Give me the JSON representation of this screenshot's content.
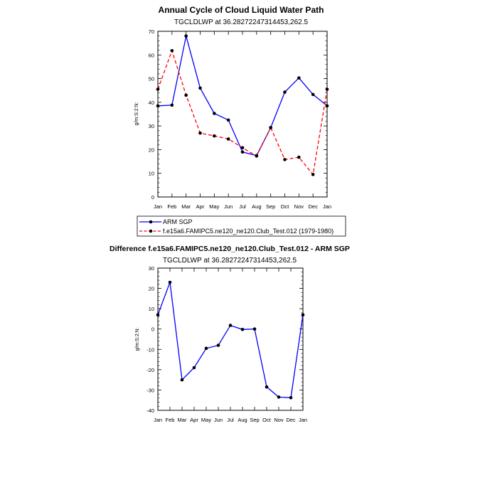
{
  "chart_data": [
    {
      "type": "line",
      "title": "Annual Cycle of Cloud Liquid Water Path",
      "subtitle": "TGCLDLWP at 36.28272247314453,262.5",
      "ylabel": "g/m:S:2:N:",
      "xlabel": "",
      "categories": [
        "Jan",
        "Feb",
        "Mar",
        "Apr",
        "May",
        "Jun",
        "Jul",
        "Aug",
        "Sep",
        "Oct",
        "Nov",
        "Dec",
        "Jan"
      ],
      "ylim": [
        0,
        70
      ],
      "yticks": [
        "0",
        "10",
        "20",
        "30",
        "40",
        "50",
        "60",
        "70"
      ],
      "grid": false,
      "legend": "below",
      "series": [
        {
          "name": "ARM SGP",
          "color": "#0000ff",
          "dash": "solid",
          "values": [
            38.5,
            38.8,
            68.0,
            46.0,
            35.3,
            32.5,
            19.0,
            17.5,
            29.3,
            44.3,
            50.3,
            43.3,
            38.5
          ]
        },
        {
          "name": "f.e15a6.FAMIPC5.ne120_ne120.Club_Test.012 (1979-1980)",
          "color": "#ff0000",
          "dash": "dashed",
          "values": [
            45.5,
            61.8,
            43.0,
            27.0,
            25.8,
            24.5,
            20.8,
            17.3,
            29.3,
            15.8,
            16.8,
            9.5,
            45.5
          ]
        }
      ]
    },
    {
      "type": "line",
      "title": "Difference f.e15a6.FAMIPC5.ne120_ne120.Club_Test.012 - ARM SGP",
      "subtitle": "TGCLDLWP at 36.28272247314453,262.5",
      "ylabel": "g/m:S:2:N:",
      "xlabel": "",
      "categories": [
        "Jan",
        "Feb",
        "Mar",
        "Apr",
        "May",
        "Jun",
        "Jul",
        "Aug",
        "Sep",
        "Oct",
        "Nov",
        "Dec",
        "Jan"
      ],
      "ylim": [
        -40,
        30
      ],
      "yticks": [
        "-40",
        "-30",
        "-20",
        "-10",
        "0",
        "10",
        "20",
        "30"
      ],
      "grid": false,
      "series": [
        {
          "color": "#0000ff",
          "dash": "solid",
          "values": [
            7.0,
            23.0,
            -25.0,
            -19.0,
            -9.5,
            -8.0,
            1.8,
            -0.2,
            0.0,
            -28.5,
            -33.5,
            -33.8,
            7.0
          ]
        }
      ]
    }
  ]
}
